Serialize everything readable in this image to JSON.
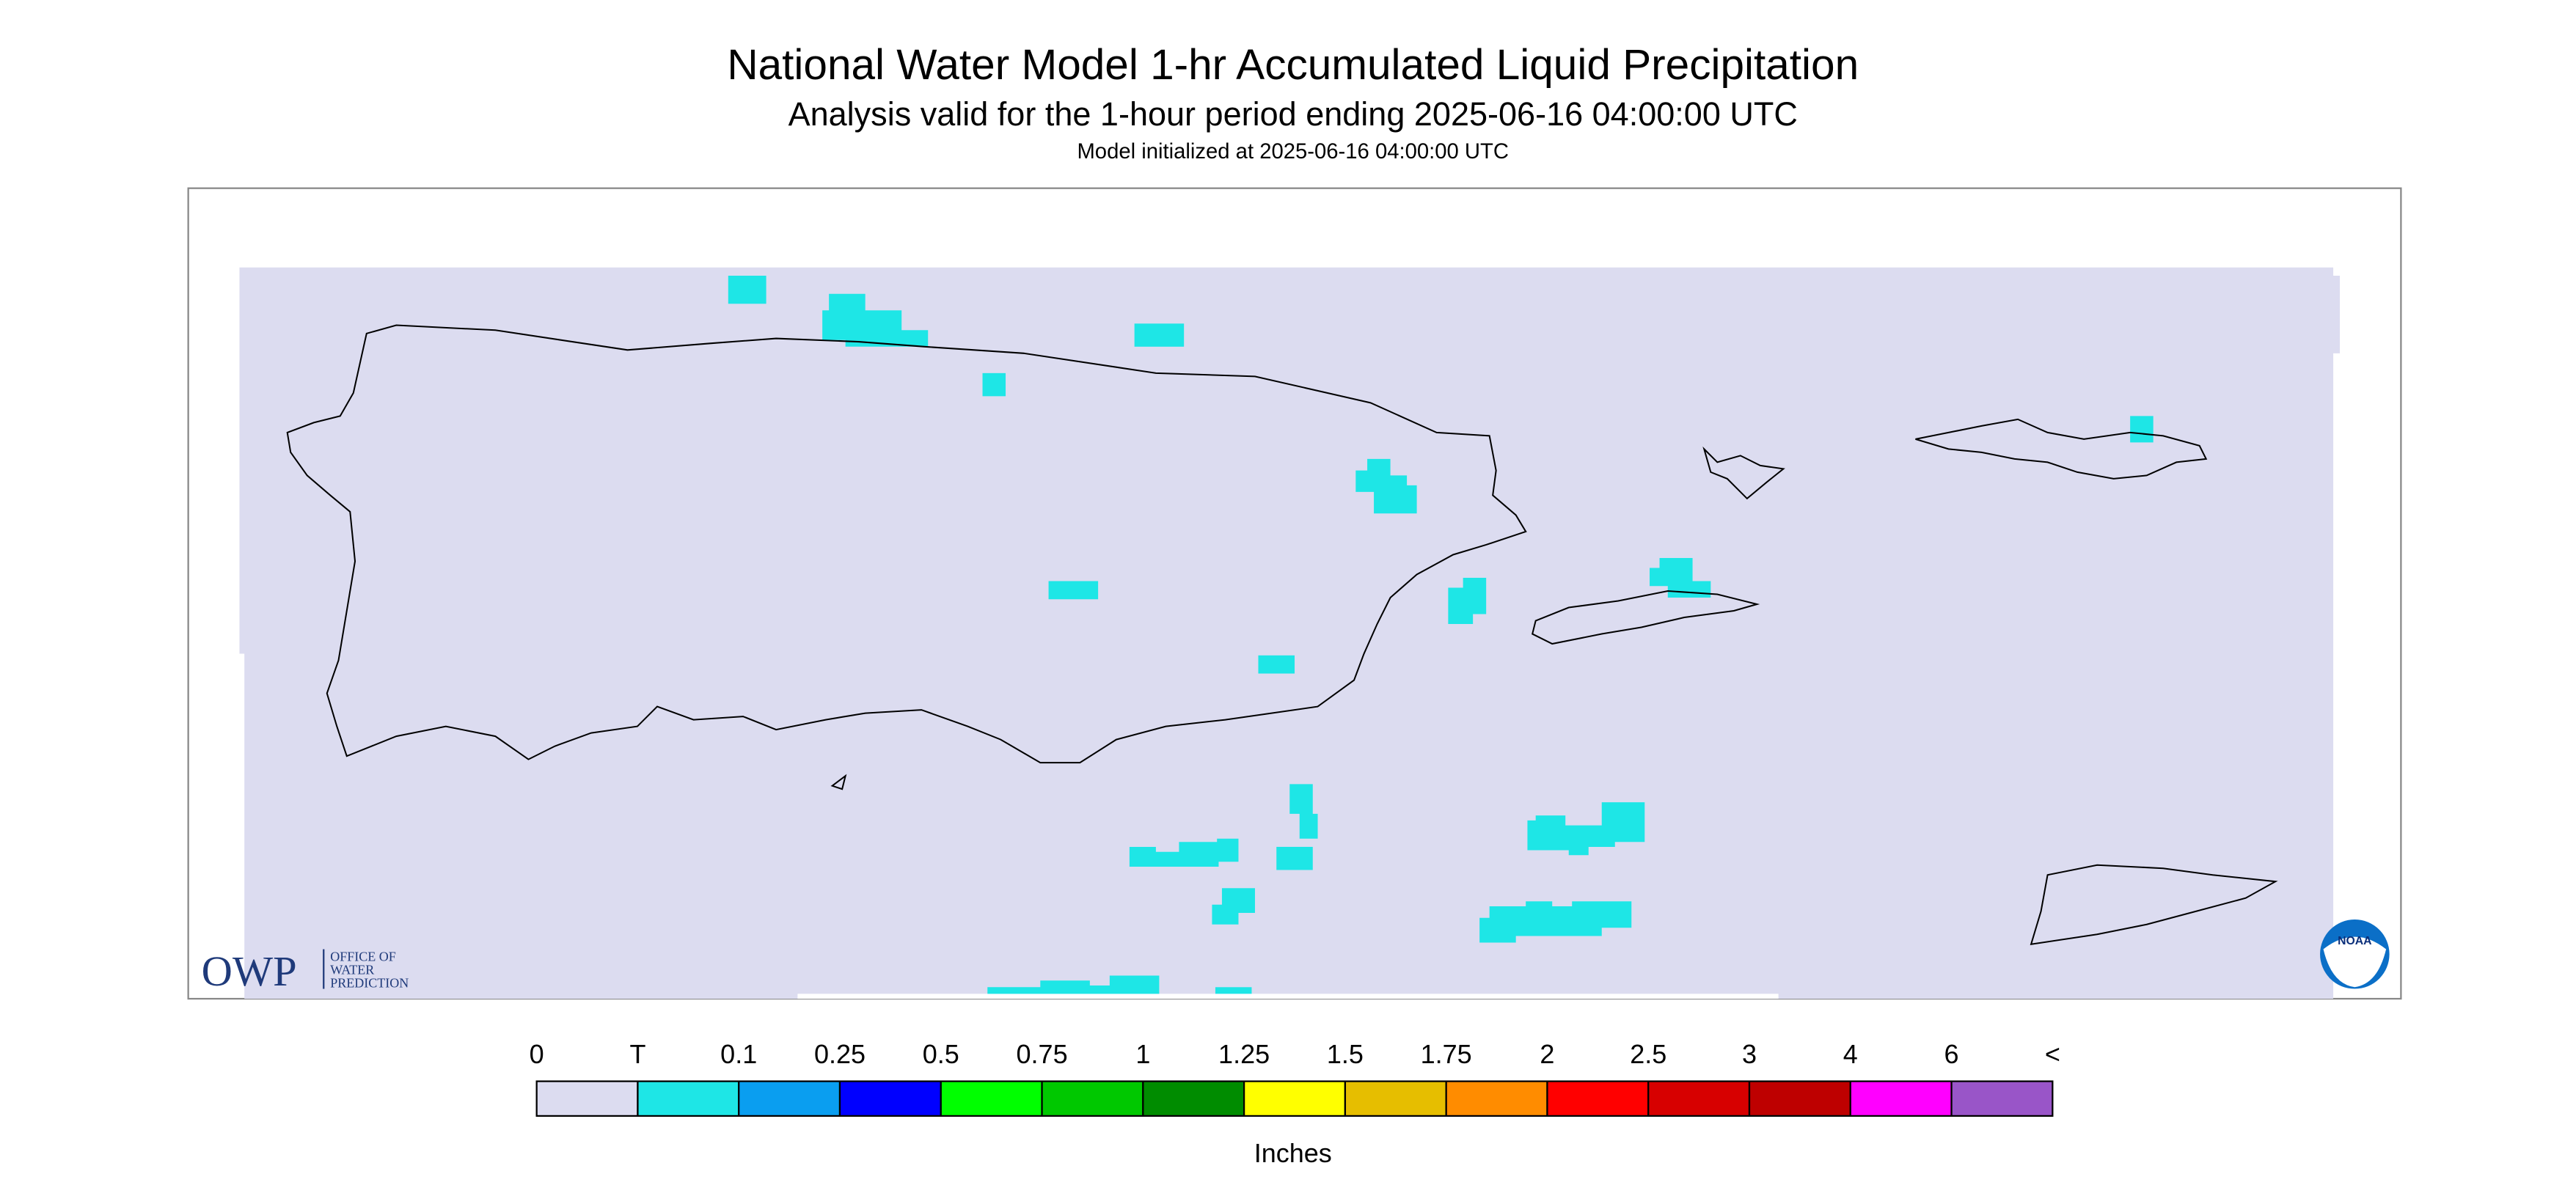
{
  "header": {
    "title": "National Water Model 1-hr Accumulated Liquid Precipitation",
    "subtitle": "Analysis valid for the 1-hour period ending 2025-06-16 04:00:00 UTC",
    "note": "Model initialized at 2025-06-16 04:00:00 UTC"
  },
  "map": {
    "background": "#dcdcf0",
    "precip_color": "#1ee6e6"
  },
  "logos": {
    "owp": "OWP",
    "owp_line1": "OFFICE OF",
    "owp_line2": "WATER",
    "owp_line3": "PREDICTION",
    "noaa": "NOAA"
  },
  "legend": {
    "unit": "Inches",
    "labels": [
      "0",
      "T",
      "0.1",
      "0.25",
      "0.5",
      "0.75",
      "1",
      "1.25",
      "1.5",
      "1.75",
      "2",
      "2.5",
      "3",
      "4",
      "6",
      "<"
    ],
    "colors": [
      "#dcdcf0",
      "#1ee6e6",
      "#0a9ef0",
      "#0000ff",
      "#00ff00",
      "#00c800",
      "#008c00",
      "#ffff00",
      "#e6be00",
      "#ff8c00",
      "#ff0000",
      "#d70000",
      "#be0000",
      "#ff00ff",
      "#9955c8"
    ]
  }
}
